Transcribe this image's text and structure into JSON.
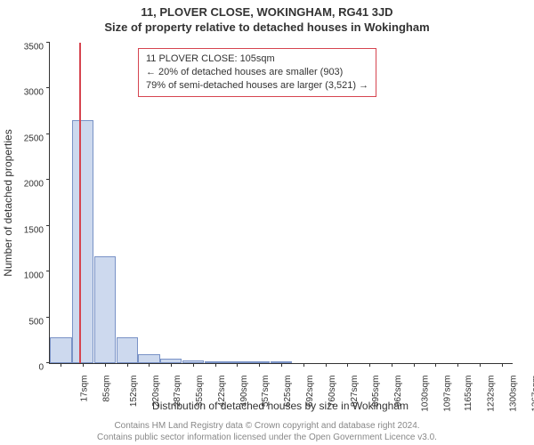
{
  "title_line1": "11, PLOVER CLOSE, WOKINGHAM, RG41 3JD",
  "title_line2": "Size of property relative to detached houses in Wokingham",
  "ylabel": "Number of detached properties",
  "xlabel": "Distribution of detached houses by size in Wokingham",
  "chart": {
    "type": "histogram",
    "background_color": "#ffffff",
    "bar_fill": "#cdd9ee",
    "bar_stroke": "#7992c6",
    "axis_color": "#333333",
    "marker_line_color": "#d64550",
    "ylim": [
      0,
      3500
    ],
    "ytick_step": 500,
    "yticks": [
      0,
      500,
      1000,
      1500,
      2000,
      2500,
      3000,
      3500
    ],
    "marker_at_category_index": 1,
    "categories": [
      "17sqm",
      "85sqm",
      "152sqm",
      "220sqm",
      "287sqm",
      "355sqm",
      "422sqm",
      "490sqm",
      "557sqm",
      "625sqm",
      "692sqm",
      "760sqm",
      "827sqm",
      "895sqm",
      "962sqm",
      "1030sqm",
      "1097sqm",
      "1165sqm",
      "1232sqm",
      "1300sqm",
      "1367sqm"
    ],
    "values": [
      280,
      2650,
      1170,
      280,
      100,
      50,
      25,
      15,
      10,
      5,
      5,
      0,
      0,
      0,
      0,
      0,
      0,
      0,
      0,
      0,
      0
    ],
    "info_box": {
      "border_color": "#d64550",
      "background_color": "#ffffff",
      "line1": "11 PLOVER CLOSE: 105sqm",
      "line2": "← 20% of detached houses are smaller (903)",
      "line3": "79% of semi-detached houses are larger (3,521) →"
    }
  },
  "footer_line1": "Contains HM Land Registry data © Crown copyright and database right 2024.",
  "footer_line2": "Contains public sector information licensed under the Open Government Licence v3.0.",
  "fontsize_title": 13,
  "fontsize_label": 12,
  "fontsize_tick": 10,
  "fontsize_footer": 10
}
